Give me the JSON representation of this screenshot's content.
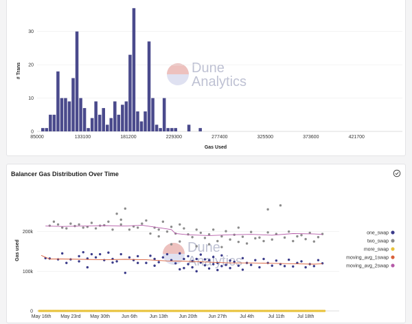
{
  "brand": {
    "line1": "Dune",
    "line2": "Analytics",
    "color": "#8a8fb0",
    "logo_colors": [
      "#f2b3a8",
      "#c5c8e6"
    ]
  },
  "colors": {
    "bar": "#4a4a8c",
    "one_swap": "#3b3b8a",
    "two_swap": "#8c8c8c",
    "more_swap": "#e8c23a",
    "moving_avg_1swap": "#d9603b",
    "moving_avg_2swap": "#b55aa8"
  },
  "chart_data": [
    {
      "type": "bar",
      "title": "",
      "xlabel": "Gas Used",
      "ylabel": "# Trans",
      "xlim": [
        85000,
        470000
      ],
      "ylim": [
        0,
        38
      ],
      "bin_width": 4000,
      "x_ticks": [
        85000,
        133100,
        181200,
        229300,
        277400,
        325500,
        373600,
        421700
      ],
      "x_tick_labels": [
        "85000",
        "133100",
        "181200",
        "229300",
        "277400",
        "325500",
        "373600",
        "421700"
      ],
      "y_ticks": [
        0,
        10,
        20,
        30
      ],
      "y_tick_labels": [
        "0",
        "10",
        "20",
        "30"
      ],
      "bins": [
        {
          "x": 91000,
          "value": 1
        },
        {
          "x": 95000,
          "value": 1
        },
        {
          "x": 99000,
          "value": 5
        },
        {
          "x": 103000,
          "value": 5
        },
        {
          "x": 107000,
          "value": 18
        },
        {
          "x": 111000,
          "value": 10
        },
        {
          "x": 115000,
          "value": 10
        },
        {
          "x": 119000,
          "value": 9
        },
        {
          "x": 123000,
          "value": 16
        },
        {
          "x": 127000,
          "value": 30
        },
        {
          "x": 131000,
          "value": 10
        },
        {
          "x": 135000,
          "value": 7
        },
        {
          "x": 139000,
          "value": 1
        },
        {
          "x": 143000,
          "value": 4
        },
        {
          "x": 147000,
          "value": 9
        },
        {
          "x": 151000,
          "value": 5
        },
        {
          "x": 155000,
          "value": 7
        },
        {
          "x": 159000,
          "value": 2
        },
        {
          "x": 163000,
          "value": 4
        },
        {
          "x": 167000,
          "value": 9
        },
        {
          "x": 171000,
          "value": 5
        },
        {
          "x": 175000,
          "value": 8
        },
        {
          "x": 179000,
          "value": 9
        },
        {
          "x": 183000,
          "value": 23
        },
        {
          "x": 187000,
          "value": 37
        },
        {
          "x": 191000,
          "value": 6
        },
        {
          "x": 195000,
          "value": 3
        },
        {
          "x": 199000,
          "value": 6
        },
        {
          "x": 203000,
          "value": 27
        },
        {
          "x": 207000,
          "value": 10
        },
        {
          "x": 211000,
          "value": 2
        },
        {
          "x": 215000,
          "value": 1
        },
        {
          "x": 219000,
          "value": 10
        },
        {
          "x": 223000,
          "value": 1
        },
        {
          "x": 227000,
          "value": 1
        },
        {
          "x": 231000,
          "value": 1
        },
        {
          "x": 245000,
          "value": 2
        },
        {
          "x": 257000,
          "value": 1
        }
      ]
    },
    {
      "type": "scatter",
      "title": "Balancer Gas Distribution Over Time",
      "xlabel": "",
      "ylabel": "Gas used",
      "x_ticks": [
        0,
        7,
        14,
        21,
        28,
        35,
        42,
        49,
        56,
        63
      ],
      "x_tick_labels": [
        "May 16th",
        "May 23rd",
        "May 30th",
        "Jun 6th",
        "Jun 13th",
        "Jun 20th",
        "Jun 27th",
        "Jul 4th",
        "Jul 11th",
        "Jul 18th"
      ],
      "xlim": [
        -1,
        71
      ],
      "ylim": [
        0,
        300000
      ],
      "y_ticks": [
        0,
        100000,
        200000
      ],
      "y_tick_labels": [
        "0",
        "100k",
        "200k"
      ],
      "legend": [
        "one_swap",
        "two_swap",
        "more_swap",
        "moving_avg_1swap",
        "moving_avg_2swap"
      ],
      "legend_position": "right",
      "series": [
        {
          "name": "one_swap",
          "kind": "scatter",
          "points": [
            [
              1,
              133000
            ],
            [
              2,
              132000
            ],
            [
              4,
              130000
            ],
            [
              5,
              145000
            ],
            [
              6,
              121000
            ],
            [
              7,
              130000
            ],
            [
              9,
              138000
            ],
            [
              9,
              125000
            ],
            [
              10,
              148000
            ],
            [
              11,
              132000
            ],
            [
              11,
              110000
            ],
            [
              12,
              143000
            ],
            [
              13,
              135000
            ],
            [
              14,
              143000
            ],
            [
              15,
              128000
            ],
            [
              16,
              147000
            ],
            [
              17,
              131000
            ],
            [
              17,
              122000
            ],
            [
              18,
              125000
            ],
            [
              19,
              143000
            ],
            [
              20,
              96000
            ],
            [
              21,
              135000
            ],
            [
              22,
              128000
            ],
            [
              23,
              121000
            ],
            [
              23,
              138000
            ],
            [
              25,
              121000
            ],
            [
              26,
              139000
            ],
            [
              27,
              114000
            ],
            [
              27,
              131000
            ],
            [
              28,
              123000
            ],
            [
              29,
              135000
            ],
            [
              30,
              143000
            ],
            [
              31,
              128000
            ],
            [
              32,
              120000
            ],
            [
              33,
              105000
            ],
            [
              33,
              145000
            ],
            [
              34,
              131000
            ],
            [
              34,
              108000
            ],
            [
              35,
              118000
            ],
            [
              35,
              138000
            ],
            [
              36,
              126000
            ],
            [
              36,
              110000
            ],
            [
              37,
              131000
            ],
            [
              37,
              100000
            ],
            [
              38,
              122000
            ],
            [
              38,
              142000
            ],
            [
              39,
              115000
            ],
            [
              39,
              130000
            ],
            [
              40,
              128000
            ],
            [
              40,
              107000
            ],
            [
              41,
              136000
            ],
            [
              41,
              118000
            ],
            [
              42,
              121000
            ],
            [
              42,
              103000
            ],
            [
              43,
              140000
            ],
            [
              43,
              113000
            ],
            [
              44,
              116000
            ],
            [
              45,
              127000
            ],
            [
              45,
              108000
            ],
            [
              46,
              124000
            ],
            [
              47,
              114000
            ],
            [
              48,
              133000
            ],
            [
              48,
              104000
            ],
            [
              49,
              121000
            ],
            [
              50,
              116000
            ],
            [
              51,
              128000
            ],
            [
              52,
              110000
            ],
            [
              53,
              131000
            ],
            [
              54,
              121000
            ],
            [
              55,
              114000
            ],
            [
              56,
              127000
            ],
            [
              57,
              118000
            ],
            [
              58,
              113000
            ],
            [
              59,
              129000
            ],
            [
              60,
              112000
            ],
            [
              61,
              121000
            ],
            [
              62,
              125000
            ],
            [
              63,
              110000
            ],
            [
              64,
              118000
            ],
            [
              65,
              113000
            ],
            [
              66,
              128000
            ],
            [
              67,
              120000
            ]
          ]
        },
        {
          "name": "two_swap",
          "kind": "scatter",
          "points": [
            [
              2,
              215000
            ],
            [
              3,
              225000
            ],
            [
              4,
              218000
            ],
            [
              5,
              210000
            ],
            [
              6,
              208000
            ],
            [
              7,
              220000
            ],
            [
              8,
              214000
            ],
            [
              9,
              218000
            ],
            [
              10,
              210000
            ],
            [
              11,
              212000
            ],
            [
              12,
              222000
            ],
            [
              13,
              208000
            ],
            [
              14,
              215000
            ],
            [
              15,
              216000
            ],
            [
              16,
              225000
            ],
            [
              17,
              205000
            ],
            [
              18,
              245000
            ],
            [
              19,
              230000
            ],
            [
              19,
              218000
            ],
            [
              20,
              258000
            ],
            [
              21,
              205000
            ],
            [
              22,
              213000
            ],
            [
              23,
              210000
            ],
            [
              24,
              220000
            ],
            [
              25,
              228000
            ],
            [
              26,
              195000
            ],
            [
              27,
              210000
            ],
            [
              28,
              205000
            ],
            [
              28,
              188000
            ],
            [
              29,
              225000
            ],
            [
              30,
              200000
            ],
            [
              31,
              212000
            ],
            [
              31,
              168000
            ],
            [
              32,
              195000
            ],
            [
              33,
              218000
            ],
            [
              33,
              175000
            ],
            [
              34,
              208000
            ],
            [
              35,
              193000
            ],
            [
              36,
              186000
            ],
            [
              37,
              205000
            ],
            [
              37,
              163000
            ],
            [
              38,
              197000
            ],
            [
              39,
              184000
            ],
            [
              40,
              193000
            ],
            [
              40,
              168000
            ],
            [
              41,
              205000
            ],
            [
              42,
              176000
            ],
            [
              43,
              188000
            ],
            [
              43,
              161000
            ],
            [
              44,
              201000
            ],
            [
              45,
              180000
            ],
            [
              46,
              192000
            ],
            [
              47,
              174000
            ],
            [
              47,
              210000
            ],
            [
              48,
              187000
            ],
            [
              49,
              170000
            ],
            [
              50,
              199000
            ],
            [
              51,
              183000
            ],
            [
              52,
              185000
            ],
            [
              53,
              176000
            ],
            [
              54,
              198000
            ],
            [
              54,
              256000
            ],
            [
              55,
              180000
            ],
            [
              56,
              194000
            ],
            [
              57,
              266000
            ],
            [
              58,
              185000
            ],
            [
              59,
              200000
            ],
            [
              60,
              176000
            ],
            [
              61,
              188000
            ],
            [
              62,
              191000
            ],
            [
              63,
              181000
            ],
            [
              64,
              197000
            ],
            [
              65,
              175000
            ],
            [
              66,
              186000
            ],
            [
              67,
              194000
            ]
          ]
        },
        {
          "name": "more_swap",
          "kind": "scatter",
          "band": [
            -0.5,
            67.5
          ],
          "value": 0,
          "count": 250
        },
        {
          "name": "moving_avg_1swap",
          "kind": "line",
          "points": [
            [
              0,
              140000
            ],
            [
              2,
              131000
            ],
            [
              5,
              131000
            ],
            [
              10,
              130000
            ],
            [
              15,
              129000
            ],
            [
              20,
              130000
            ],
            [
              25,
              129000
            ],
            [
              30,
              126000
            ],
            [
              35,
              125000
            ],
            [
              40,
              123000
            ],
            [
              45,
              121000
            ],
            [
              50,
              121000
            ],
            [
              55,
              120000
            ],
            [
              60,
              119000
            ],
            [
              65,
              118000
            ],
            [
              67,
              119000
            ]
          ]
        },
        {
          "name": "moving_avg_2swap",
          "kind": "line",
          "points": [
            [
              1,
              214000
            ],
            [
              5,
              213000
            ],
            [
              10,
              214000
            ],
            [
              15,
              215000
            ],
            [
              20,
              214000
            ],
            [
              24,
              216000
            ],
            [
              28,
              210000
            ],
            [
              31,
              205000
            ],
            [
              32,
              195000
            ],
            [
              35,
              192000
            ],
            [
              40,
              190000
            ],
            [
              45,
              192000
            ],
            [
              50,
              193000
            ],
            [
              55,
              191000
            ],
            [
              60,
              195000
            ],
            [
              65,
              194000
            ],
            [
              67,
              193000
            ]
          ]
        }
      ]
    }
  ]
}
